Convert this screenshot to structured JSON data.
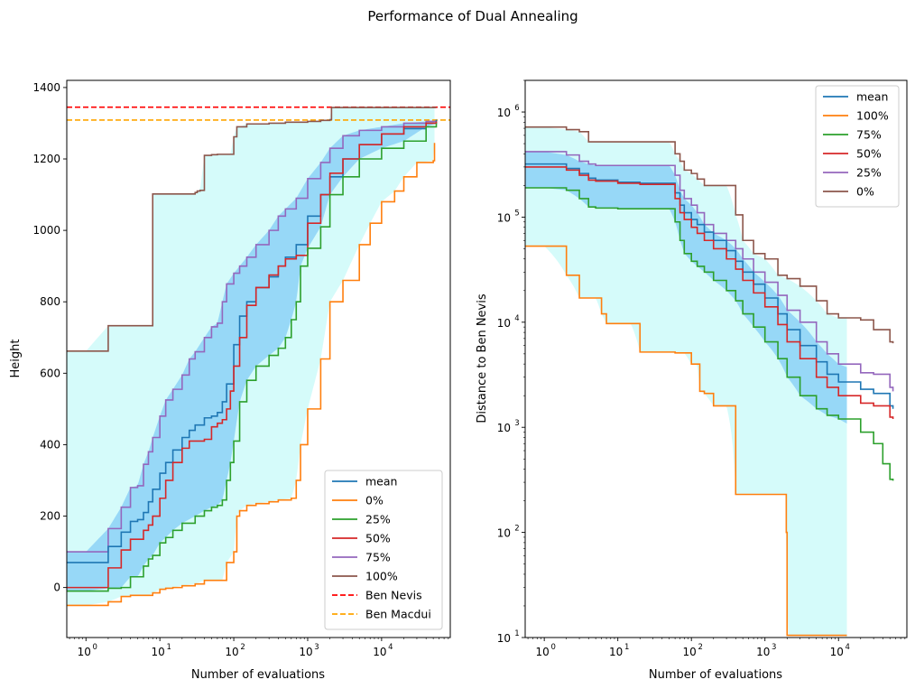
{
  "suptitle": "Performance of Dual Annealing",
  "chart_data": [
    {
      "type": "line",
      "xlabel": "Number of evaluations",
      "ylabel": "Height",
      "xscale": "log",
      "xlim": [
        0.55,
        85000
      ],
      "ylim": [
        -140,
        1420
      ],
      "yticks": [
        0,
        200,
        400,
        600,
        800,
        1000,
        1200,
        1400
      ],
      "ytick_labels": [
        "0",
        "200",
        "400",
        "600",
        "800",
        "1000",
        "1200",
        "1400"
      ],
      "xtick_labels": [
        {
          "base": "10",
          "exp": "0"
        },
        {
          "base": "10",
          "exp": "1"
        },
        {
          "base": "10",
          "exp": "2"
        },
        {
          "base": "10",
          "exp": "3"
        },
        {
          "base": "10",
          "exp": "4"
        }
      ],
      "legend_position": "lower right",
      "legend": [
        {
          "label": "mean",
          "color": "#1f77b4",
          "dash": false
        },
        {
          "label": "0%",
          "color": "#ff7f0e",
          "dash": false
        },
        {
          "label": "25%",
          "color": "#2ca02c",
          "dash": false
        },
        {
          "label": "50%",
          "color": "#d62728",
          "dash": false
        },
        {
          "label": "75%",
          "color": "#9467bd",
          "dash": false
        },
        {
          "label": "100%",
          "color": "#8c564b",
          "dash": false
        },
        {
          "label": "Ben Nevis",
          "color": "#ff0000",
          "dash": true
        },
        {
          "label": "Ben Macdui",
          "color": "#ffa500",
          "dash": true
        }
      ],
      "hlines": [
        {
          "y": 1345,
          "color": "#ff0000"
        },
        {
          "y": 1309,
          "color": "#ffa500"
        }
      ],
      "band_colors": {
        "outer": "#d5fbfa",
        "inner": "#97d8f7"
      },
      "series": [
        {
          "color": "#8c564b",
          "x": [
            0.55,
            1,
            2,
            3,
            5,
            7,
            7.9,
            8,
            12,
            20,
            25,
            30,
            32,
            35,
            40,
            50,
            60,
            70,
            80,
            90,
            100,
            110,
            120,
            150,
            200,
            300,
            500,
            1000,
            1500,
            2000,
            2100,
            5000,
            10000,
            20000,
            40000,
            55000
          ],
          "y": [
            662,
            662,
            733,
            733,
            733,
            733,
            733,
            1102,
            1102,
            1102,
            1102,
            1106,
            1110,
            1112,
            1210,
            1212,
            1213,
            1213,
            1213,
            1213,
            1262,
            1290,
            1290,
            1298,
            1298,
            1300,
            1303,
            1305,
            1308,
            1310,
            1344,
            1344,
            1344,
            1344,
            1344,
            1344
          ]
        },
        {
          "color": "#9467bd",
          "x": [
            0.55,
            1,
            2,
            3,
            4,
            5,
            6,
            7,
            8,
            10,
            12,
            15,
            20,
            25,
            30,
            40,
            50,
            60,
            70,
            80,
            100,
            120,
            150,
            200,
            300,
            400,
            500,
            700,
            1000,
            1500,
            2000,
            3000,
            5000,
            10000,
            20000,
            40000,
            55000
          ],
          "y": [
            100,
            100,
            165,
            225,
            280,
            285,
            345,
            380,
            420,
            480,
            525,
            555,
            595,
            640,
            660,
            700,
            730,
            740,
            800,
            850,
            880,
            900,
            925,
            960,
            1000,
            1040,
            1060,
            1090,
            1145,
            1190,
            1230,
            1265,
            1280,
            1290,
            1300,
            1305,
            1308
          ]
        },
        {
          "color": "#1f77b4",
          "x": [
            0.55,
            1,
            2,
            3,
            4,
            5,
            6,
            7,
            8,
            10,
            12,
            15,
            20,
            25,
            30,
            40,
            50,
            60,
            70,
            80,
            100,
            120,
            150,
            200,
            300,
            400,
            500,
            700,
            1000,
            1500,
            2000,
            3000,
            5000,
            10000,
            20000,
            40000,
            55000
          ],
          "y": [
            70,
            70,
            115,
            155,
            185,
            190,
            210,
            240,
            275,
            320,
            350,
            385,
            420,
            440,
            455,
            475,
            480,
            490,
            520,
            570,
            680,
            760,
            800,
            840,
            870,
            900,
            925,
            960,
            1040,
            1100,
            1150,
            1200,
            1240,
            1270,
            1285,
            1300,
            1310
          ]
        },
        {
          "color": "#d62728",
          "x": [
            0.55,
            1,
            2,
            3,
            4,
            5,
            6,
            7,
            8,
            10,
            12,
            15,
            20,
            25,
            30,
            40,
            50,
            60,
            70,
            80,
            90,
            100,
            120,
            150,
            200,
            300,
            400,
            500,
            700,
            1000,
            1500,
            2000,
            3000,
            5000,
            10000,
            20000,
            40000,
            55000
          ],
          "y": [
            0,
            0,
            55,
            105,
            135,
            135,
            160,
            175,
            200,
            250,
            300,
            350,
            390,
            410,
            410,
            415,
            450,
            460,
            470,
            500,
            550,
            620,
            700,
            790,
            840,
            875,
            900,
            920,
            930,
            1020,
            1100,
            1160,
            1200,
            1240,
            1270,
            1290,
            1300,
            1305
          ]
        },
        {
          "color": "#2ca02c",
          "x": [
            0.55,
            1,
            2,
            3,
            4,
            5,
            6,
            7,
            8,
            10,
            12,
            15,
            20,
            30,
            40,
            50,
            60,
            70,
            80,
            90,
            100,
            120,
            150,
            200,
            300,
            400,
            500,
            600,
            700,
            800,
            1000,
            1500,
            2000,
            3000,
            5000,
            10000,
            20000,
            40000,
            55000
          ],
          "y": [
            -10,
            -10,
            -2,
            0,
            30,
            30,
            60,
            80,
            90,
            125,
            140,
            160,
            180,
            200,
            215,
            225,
            230,
            245,
            300,
            350,
            410,
            520,
            580,
            620,
            650,
            670,
            700,
            750,
            800,
            900,
            950,
            1010,
            1100,
            1150,
            1200,
            1230,
            1250,
            1290,
            1300
          ]
        },
        {
          "color": "#ff7f0e",
          "x": [
            0.55,
            1,
            2,
            3,
            4,
            5,
            7,
            8,
            10,
            12,
            15,
            20,
            30,
            40,
            50,
            60,
            70,
            80,
            100,
            110,
            120,
            150,
            200,
            300,
            400,
            600,
            700,
            800,
            1000,
            1500,
            2000,
            3000,
            5000,
            7000,
            10000,
            15000,
            20000,
            30000,
            50000,
            52000
          ],
          "y": [
            -50,
            -50,
            -40,
            -25,
            -22,
            -22,
            -22,
            -15,
            -5,
            -2,
            0,
            5,
            10,
            20,
            20,
            20,
            20,
            70,
            100,
            200,
            215,
            230,
            235,
            240,
            245,
            250,
            300,
            400,
            500,
            640,
            800,
            860,
            960,
            1020,
            1080,
            1110,
            1150,
            1190,
            1195,
            1245
          ]
        }
      ]
    },
    {
      "type": "line",
      "xlabel": "Number of evaluations",
      "ylabel": "Distance to Ben Nevis",
      "xscale": "log",
      "yscale": "log",
      "xlim": [
        0.55,
        85000
      ],
      "ylim": [
        10,
        2000000
      ],
      "xtick_labels": [
        {
          "base": "10",
          "exp": "0"
        },
        {
          "base": "10",
          "exp": "1"
        },
        {
          "base": "10",
          "exp": "2"
        },
        {
          "base": "10",
          "exp": "3"
        },
        {
          "base": "10",
          "exp": "4"
        }
      ],
      "ytick_labels": [
        {
          "base": "10",
          "exp": "1"
        },
        {
          "base": "10",
          "exp": "2"
        },
        {
          "base": "10",
          "exp": "3"
        },
        {
          "base": "10",
          "exp": "4"
        },
        {
          "base": "10",
          "exp": "5"
        },
        {
          "base": "10",
          "exp": "6"
        }
      ],
      "legend_position": "upper right",
      "legend": [
        {
          "label": "mean",
          "color": "#1f77b4",
          "dash": false
        },
        {
          "label": "100%",
          "color": "#ff7f0e",
          "dash": false
        },
        {
          "label": "75%",
          "color": "#2ca02c",
          "dash": false
        },
        {
          "label": "50%",
          "color": "#d62728",
          "dash": false
        },
        {
          "label": "25%",
          "color": "#9467bd",
          "dash": false
        },
        {
          "label": "0%",
          "color": "#8c564b",
          "dash": false
        }
      ],
      "band_colors": {
        "outer": "#d5fbfa",
        "inner": "#97d8f7"
      },
      "series": [
        {
          "color": "#8c564b",
          "x": [
            0.55,
            1,
            2,
            3,
            4,
            5,
            10,
            20,
            50,
            60,
            70,
            80,
            100,
            120,
            150,
            200,
            300,
            400,
            500,
            700,
            1000,
            1500,
            2000,
            3000,
            5000,
            7000,
            10000,
            15000,
            20000,
            30000,
            50000,
            55000
          ],
          "y": [
            720000,
            720000,
            680000,
            650000,
            520000,
            520000,
            520000,
            520000,
            520000,
            400000,
            340000,
            280000,
            260000,
            230000,
            200000,
            200000,
            200000,
            105000,
            60000,
            45000,
            40000,
            28000,
            26000,
            22000,
            16000,
            12000,
            11000,
            11000,
            10500,
            8500,
            6500,
            6300
          ]
        },
        {
          "color": "#9467bd",
          "x": [
            0.55,
            1,
            2,
            3,
            4,
            5,
            10,
            20,
            50,
            60,
            70,
            80,
            100,
            120,
            150,
            200,
            300,
            400,
            500,
            700,
            1000,
            1500,
            2000,
            3000,
            5000,
            7000,
            10000,
            20000,
            30000,
            50000,
            55000
          ],
          "y": [
            420000,
            420000,
            390000,
            340000,
            320000,
            310000,
            310000,
            310000,
            310000,
            250000,
            180000,
            150000,
            130000,
            110000,
            85000,
            70000,
            60000,
            50000,
            40000,
            30000,
            24000,
            18000,
            13000,
            10000,
            6500,
            5000,
            4000,
            3300,
            3200,
            2400,
            2200
          ]
        },
        {
          "color": "#1f77b4",
          "x": [
            0.55,
            1,
            2,
            3,
            4,
            5,
            10,
            20,
            50,
            60,
            70,
            80,
            100,
            120,
            150,
            200,
            300,
            400,
            500,
            700,
            1000,
            1500,
            2000,
            3000,
            5000,
            7000,
            10000,
            20000,
            30000,
            50000,
            55000
          ],
          "y": [
            320000,
            320000,
            290000,
            260000,
            235000,
            225000,
            215000,
            210000,
            210000,
            170000,
            130000,
            110000,
            95000,
            85000,
            72000,
            60000,
            48000,
            38000,
            30000,
            23000,
            17000,
            12000,
            8500,
            6000,
            4200,
            3200,
            2700,
            2300,
            2100,
            1600,
            1500
          ]
        },
        {
          "color": "#d62728",
          "x": [
            0.55,
            1,
            2,
            3,
            4,
            5,
            10,
            20,
            50,
            60,
            70,
            80,
            100,
            120,
            150,
            200,
            300,
            400,
            500,
            700,
            1000,
            1500,
            2000,
            3000,
            5000,
            7000,
            10000,
            20000,
            30000,
            50000,
            55000
          ],
          "y": [
            300000,
            300000,
            280000,
            250000,
            225000,
            220000,
            210000,
            205000,
            205000,
            150000,
            110000,
            95000,
            80000,
            70000,
            60000,
            50000,
            40000,
            32000,
            25000,
            19000,
            14000,
            9500,
            6500,
            4500,
            3000,
            2400,
            2000,
            1700,
            1600,
            1250,
            1200
          ]
        },
        {
          "color": "#2ca02c",
          "x": [
            0.55,
            1,
            2,
            3,
            4,
            5,
            10,
            20,
            50,
            60,
            70,
            80,
            100,
            120,
            150,
            200,
            300,
            400,
            500,
            700,
            1000,
            1500,
            2000,
            3000,
            5000,
            7000,
            10000,
            20000,
            30000,
            40000,
            50000,
            55000
          ],
          "y": [
            190000,
            190000,
            180000,
            150000,
            125000,
            122000,
            120000,
            120000,
            120000,
            90000,
            60000,
            45000,
            38000,
            34000,
            30000,
            25000,
            20000,
            16000,
            12000,
            9000,
            6500,
            4500,
            3000,
            2000,
            1500,
            1300,
            1200,
            900,
            700,
            450,
            320,
            310
          ]
        },
        {
          "color": "#ff7f0e",
          "x": [
            0.55,
            1,
            2,
            3,
            4,
            5,
            6,
            7,
            8,
            10,
            15,
            20,
            30,
            50,
            60,
            80,
            100,
            120,
            130,
            150,
            200,
            300,
            400,
            500,
            700,
            1000,
            1500,
            1900,
            1950,
            2000,
            3000,
            5000,
            7000,
            10000,
            12000,
            13000
          ],
          "y": [
            53000,
            53000,
            28000,
            17000,
            17000,
            17000,
            12000,
            9700,
            9700,
            9700,
            9700,
            5200,
            5200,
            5200,
            5100,
            5100,
            4000,
            4000,
            2200,
            2100,
            1600,
            1600,
            230,
            230,
            230,
            230,
            230,
            230,
            100,
            10.5,
            10.5,
            10.5,
            10.5,
            10.5,
            10.5,
            10.5
          ]
        }
      ]
    }
  ]
}
